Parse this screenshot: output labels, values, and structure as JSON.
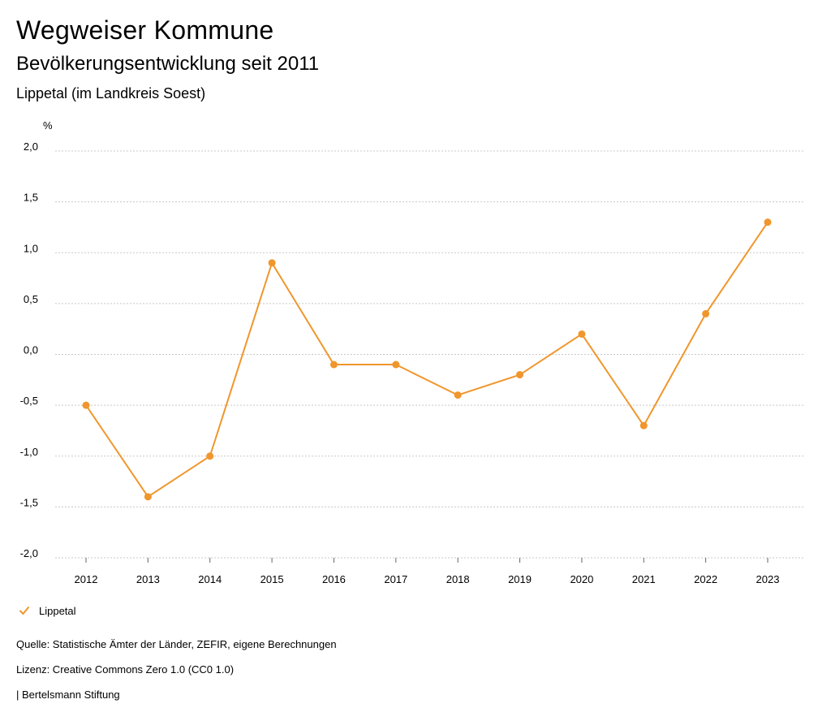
{
  "header": {
    "title": "Wegweiser Kommune",
    "subtitle": "Bevölkerungsentwicklung seit 2011",
    "region": "Lippetal (im Landkreis Soest)"
  },
  "footer": {
    "source": "Quelle: Statistische Ämter der Länder, ZEFIR, eigene Berechnungen",
    "license": "Lizenz: Creative Commons Zero 1.0 (CC0 1.0)",
    "publisher": "| Bertelsmann Stiftung"
  },
  "colors": {
    "series": "#f0962c",
    "grid": "#c8c8c8"
  },
  "chart_data": {
    "type": "line",
    "title": "Bevölkerungsentwicklung seit 2011",
    "ylabel": "%",
    "xlabel": "",
    "x": [
      "2012",
      "2013",
      "2014",
      "2015",
      "2016",
      "2017",
      "2018",
      "2019",
      "2020",
      "2021",
      "2022",
      "2023"
    ],
    "series": [
      {
        "name": "Lippetal",
        "values": [
          -0.5,
          -1.4,
          -1.0,
          0.9,
          -0.1,
          -0.1,
          -0.4,
          -0.2,
          0.2,
          -0.7,
          0.4,
          1.3
        ]
      }
    ],
    "ylim": [
      -2.0,
      2.0
    ],
    "yticks": [
      "2,0",
      "1,5",
      "1,0",
      "0,5",
      "0,0",
      "-0,5",
      "-1,0",
      "-1,5",
      "-2,0"
    ],
    "grid": true,
    "legend_position": "bottom-left"
  }
}
